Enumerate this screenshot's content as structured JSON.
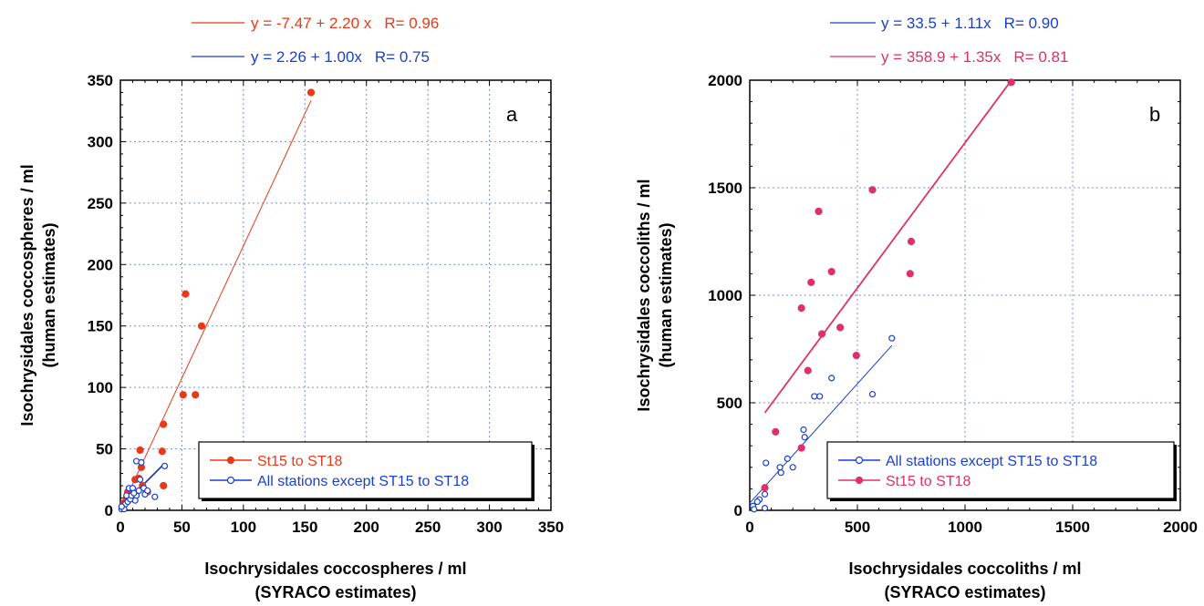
{
  "chart_data": [
    {
      "type": "scatter",
      "panel_label": "a",
      "xlabel_line1": "Isochrysidales coccospheres / ml",
      "xlabel_line2": "(SYRACO estimates)",
      "ylabel_line1": "Isochrysidales coccospheres / ml",
      "ylabel_line2": "(human estimates)",
      "xlim": [
        0,
        350
      ],
      "ylim": [
        0,
        350
      ],
      "xticks": [
        0,
        50,
        100,
        150,
        200,
        250,
        300,
        350
      ],
      "yticks": [
        0,
        50,
        100,
        150,
        200,
        250,
        300,
        350
      ],
      "grid": true,
      "legend_position": "bottom-right",
      "series": [
        {
          "name": "St15 to ST18",
          "color": "#e8391a",
          "marker": "filled-circle",
          "fit_equation": "y = -7.47 + 2.20 x",
          "fit_r": "R= 0.96",
          "fit_range": [
            0,
            155
          ],
          "points": [
            [
              155,
              340
            ],
            [
              53,
              176
            ],
            [
              66,
              150
            ],
            [
              51,
              94
            ],
            [
              61,
              94
            ],
            [
              35,
              70
            ],
            [
              34,
              48
            ],
            [
              35,
              20
            ],
            [
              16,
              49
            ],
            [
              17,
              35
            ],
            [
              15,
              26
            ],
            [
              12,
              25
            ],
            [
              8,
              16
            ],
            [
              6,
              15
            ],
            [
              22,
              15
            ],
            [
              18,
              20
            ],
            [
              5,
              10
            ],
            [
              3,
              6
            ],
            [
              2,
              3
            ]
          ]
        },
        {
          "name": "All stations except ST15 to ST18",
          "color": "#1a3fcf",
          "marker": "open-circle",
          "fit_equation": "y = 2.26 + 1.00x",
          "fit_r": "R= 0.75",
          "fit_range": [
            0,
            36
          ],
          "points": [
            [
              36,
              36
            ],
            [
              13,
              40
            ],
            [
              17,
              39
            ],
            [
              16,
              25
            ],
            [
              7,
              18
            ],
            [
              10,
              18
            ],
            [
              5,
              12
            ],
            [
              13,
              12
            ],
            [
              20,
              13
            ],
            [
              28,
              11
            ],
            [
              12,
              8
            ],
            [
              2,
              2
            ],
            [
              3,
              4
            ],
            [
              1,
              1
            ],
            [
              4,
              5
            ],
            [
              6,
              7
            ],
            [
              8,
              9
            ],
            [
              9,
              12
            ],
            [
              11,
              14
            ],
            [
              3,
              1
            ],
            [
              1,
              3
            ],
            [
              15,
              16
            ],
            [
              19,
              18
            ],
            [
              22,
              16
            ]
          ]
        }
      ]
    },
    {
      "type": "scatter",
      "panel_label": "b",
      "xlabel_line1": "Isochrysidales coccoliths / ml",
      "xlabel_line2": "(SYRACO estimates)",
      "ylabel_line1": "Isochrysidales coccoliths / ml",
      "ylabel_line2": "(human estimates)",
      "xlim": [
        0,
        2000
      ],
      "ylim": [
        0,
        2000
      ],
      "xticks": [
        0,
        500,
        1000,
        1500,
        2000
      ],
      "yticks": [
        0,
        500,
        1000,
        1500,
        2000
      ],
      "grid": true,
      "legend_position": "bottom-right",
      "series": [
        {
          "name": "All stations except ST15 to ST18",
          "color": "#1a3fcf",
          "marker": "open-circle",
          "fit_equation": "y = 33.5 + 1.11x",
          "fit_r": "R= 0.90",
          "fit_range": [
            0,
            660
          ],
          "points": [
            [
              660,
              800
            ],
            [
              570,
              540
            ],
            [
              380,
              615
            ],
            [
              300,
              530
            ],
            [
              325,
              530
            ],
            [
              250,
              375
            ],
            [
              255,
              340
            ],
            [
              175,
              240
            ],
            [
              200,
              200
            ],
            [
              140,
              200
            ],
            [
              145,
              175
            ],
            [
              75,
              220
            ],
            [
              70,
              75
            ],
            [
              45,
              50
            ],
            [
              35,
              40
            ],
            [
              15,
              20
            ],
            [
              70,
              10
            ],
            [
              20,
              5
            ]
          ]
        },
        {
          "name": "St15 to ST18",
          "color": "#e0306a",
          "marker": "filled-circle",
          "fit_equation": "y = 358.9 + 1.35x",
          "fit_r": "R= 0.81",
          "fit_range": [
            70,
            1215
          ],
          "points": [
            [
              1215,
              1990
            ],
            [
              570,
              1490
            ],
            [
              320,
              1390
            ],
            [
              750,
              1250
            ],
            [
              380,
              1110
            ],
            [
              745,
              1100
            ],
            [
              285,
              1060
            ],
            [
              240,
              940
            ],
            [
              420,
              850
            ],
            [
              335,
              820
            ],
            [
              495,
              720
            ],
            [
              270,
              650
            ],
            [
              120,
              365
            ],
            [
              240,
              290
            ],
            [
              70,
              105
            ]
          ]
        }
      ]
    }
  ]
}
